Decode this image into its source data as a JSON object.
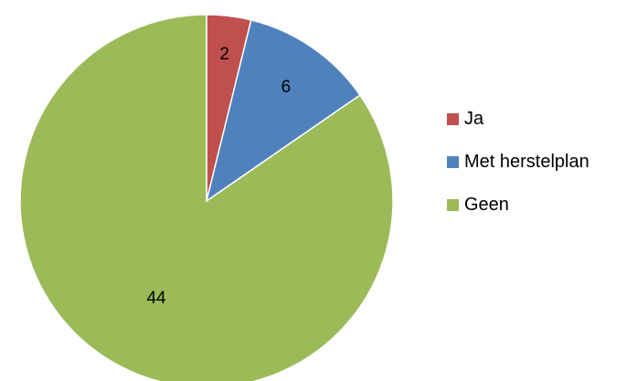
{
  "chart_data": {
    "type": "pie",
    "title": "",
    "categories": [
      "Ja",
      "Met herstelplan",
      "Geen"
    ],
    "values": [
      2,
      6,
      44
    ],
    "colors": [
      "#c0504d",
      "#4f81bd",
      "#9bbb59"
    ],
    "start_angle": "12 o'clock",
    "direction": "clockwise",
    "data_labels": true,
    "legend_position": "right"
  }
}
